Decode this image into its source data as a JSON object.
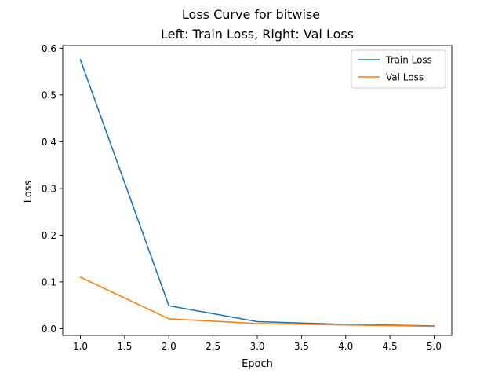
{
  "figure": {
    "suptitle": "Loss Curve for bitwise"
  },
  "chart_data": {
    "type": "line",
    "title": "Left: Train Loss, Right: Val Loss",
    "xlabel": "Epoch",
    "ylabel": "Loss",
    "xlim": [
      0.8,
      5.2
    ],
    "ylim": [
      -0.0144,
      0.6056
    ],
    "x_ticks": [
      1.0,
      1.5,
      2.0,
      2.5,
      3.0,
      3.5,
      4.0,
      4.5,
      5.0
    ],
    "x_tick_labels": [
      "1.0",
      "1.5",
      "2.0",
      "2.5",
      "3.0",
      "3.5",
      "4.0",
      "4.5",
      "5.0"
    ],
    "y_ticks": [
      0.0,
      0.1,
      0.2,
      0.3,
      0.4,
      0.5,
      0.6
    ],
    "y_tick_labels": [
      "0.0",
      "0.1",
      "0.2",
      "0.3",
      "0.4",
      "0.5",
      "0.6"
    ],
    "grid": false,
    "legend_position": "top-right",
    "x": [
      1,
      2,
      3,
      4,
      5
    ],
    "series": [
      {
        "name": "Train Loss",
        "color": "#1f77b4",
        "values": [
          0.575,
          0.049,
          0.015,
          0.009,
          0.006
        ]
      },
      {
        "name": "Val Loss",
        "color": "#ff7f0e",
        "values": [
          0.11,
          0.021,
          0.011,
          0.008,
          0.005
        ]
      }
    ]
  }
}
